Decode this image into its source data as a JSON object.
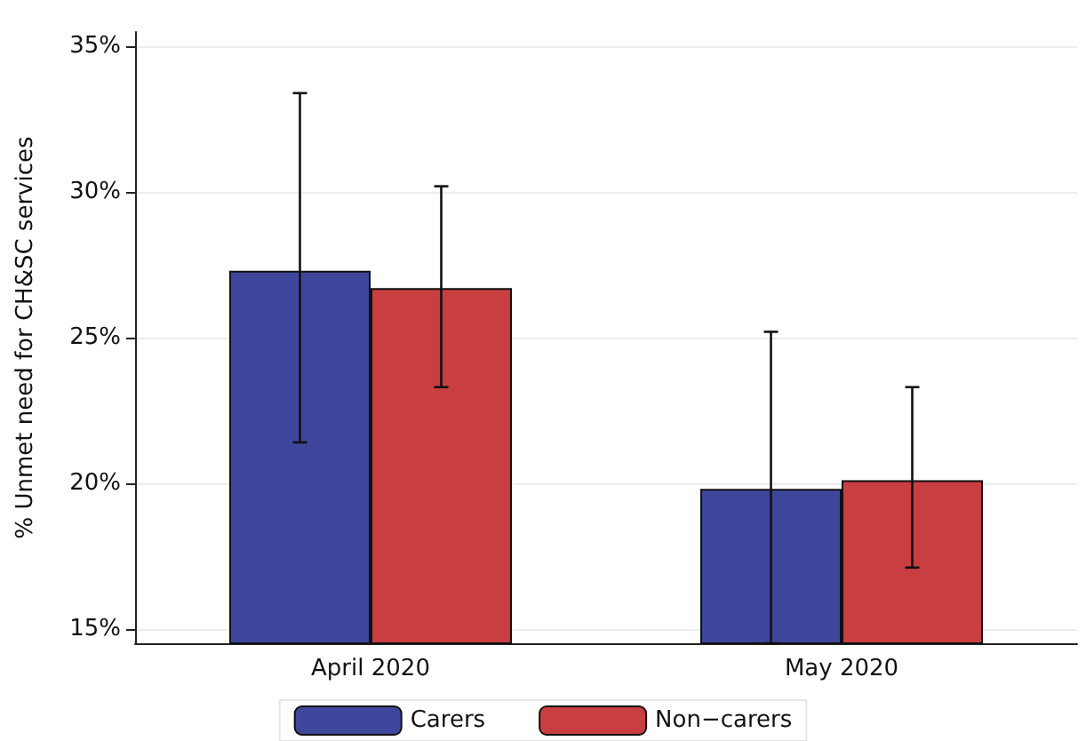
{
  "chart_data": {
    "type": "bar",
    "ylabel": "% Unmet need for CH&SC services",
    "categories": [
      "April 2020",
      "May 2020"
    ],
    "series": [
      {
        "name": "Carers",
        "color": "#3f479c",
        "values": [
          27.3,
          19.8
        ],
        "errors": [
          [
            21.4,
            33.4
          ],
          [
            14.5,
            25.2
          ]
        ]
      },
      {
        "name": "Non−carers",
        "color": "#c83e41",
        "values": [
          26.7,
          20.1
        ],
        "errors": [
          [
            23.3,
            30.2
          ],
          [
            17.1,
            23.3
          ]
        ]
      }
    ],
    "ylim": [
      14.5,
      35.5
    ],
    "yticks": [
      {
        "value": 15,
        "label": "15%"
      },
      {
        "value": 20,
        "label": "20%"
      },
      {
        "value": 25,
        "label": "25%"
      },
      {
        "value": 30,
        "label": "30%"
      },
      {
        "value": 35,
        "label": "35%"
      }
    ],
    "grid": "y",
    "legend": "bottom"
  }
}
